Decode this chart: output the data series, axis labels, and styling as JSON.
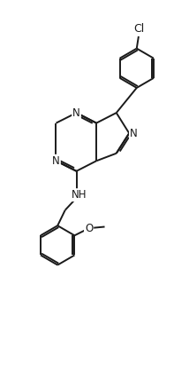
{
  "background_color": "#ffffff",
  "line_color": "#1a1a1a",
  "line_width": 1.4,
  "font_size": 8.5,
  "fig_width": 2.14,
  "fig_height": 4.18,
  "dpi": 100,
  "xlim": [
    0,
    5
  ],
  "ylim": [
    0,
    9.8
  ]
}
